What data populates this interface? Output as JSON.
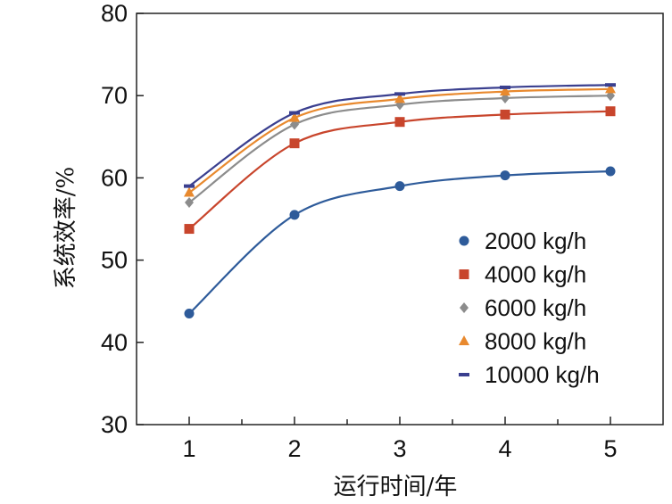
{
  "chart_data": {
    "type": "line",
    "xlabel": "运行时间/年",
    "ylabel": "系统效率/%",
    "x": [
      1,
      2,
      3,
      4,
      5
    ],
    "x_ticks": [
      "1",
      "2",
      "3",
      "4",
      "5"
    ],
    "xlim": [
      0.5,
      5.5
    ],
    "ylim": [
      30,
      80
    ],
    "y_ticks": [
      "30",
      "40",
      "50",
      "60",
      "70",
      "80"
    ],
    "grid": false,
    "legend_position": "bottom-right",
    "series": [
      {
        "name": "2000 kg/h",
        "values": [
          43.5,
          55.5,
          59.0,
          60.3,
          60.8
        ],
        "color": "#2e5b9a",
        "marker": "circle"
      },
      {
        "name": "4000 kg/h",
        "values": [
          53.8,
          64.2,
          66.8,
          67.7,
          68.1
        ],
        "color": "#c8452c",
        "marker": "square"
      },
      {
        "name": "6000 kg/h",
        "values": [
          57.0,
          66.5,
          68.9,
          69.7,
          70.0
        ],
        "color": "#8c8c8c",
        "marker": "diamond"
      },
      {
        "name": "8000 kg/h",
        "values": [
          58.2,
          67.3,
          69.6,
          70.5,
          70.8
        ],
        "color": "#e8892e",
        "marker": "triangle"
      },
      {
        "name": "10000 kg/h",
        "values": [
          59.0,
          67.9,
          70.2,
          71.0,
          71.3
        ],
        "color": "#3a3f8f",
        "marker": "dash"
      }
    ]
  }
}
